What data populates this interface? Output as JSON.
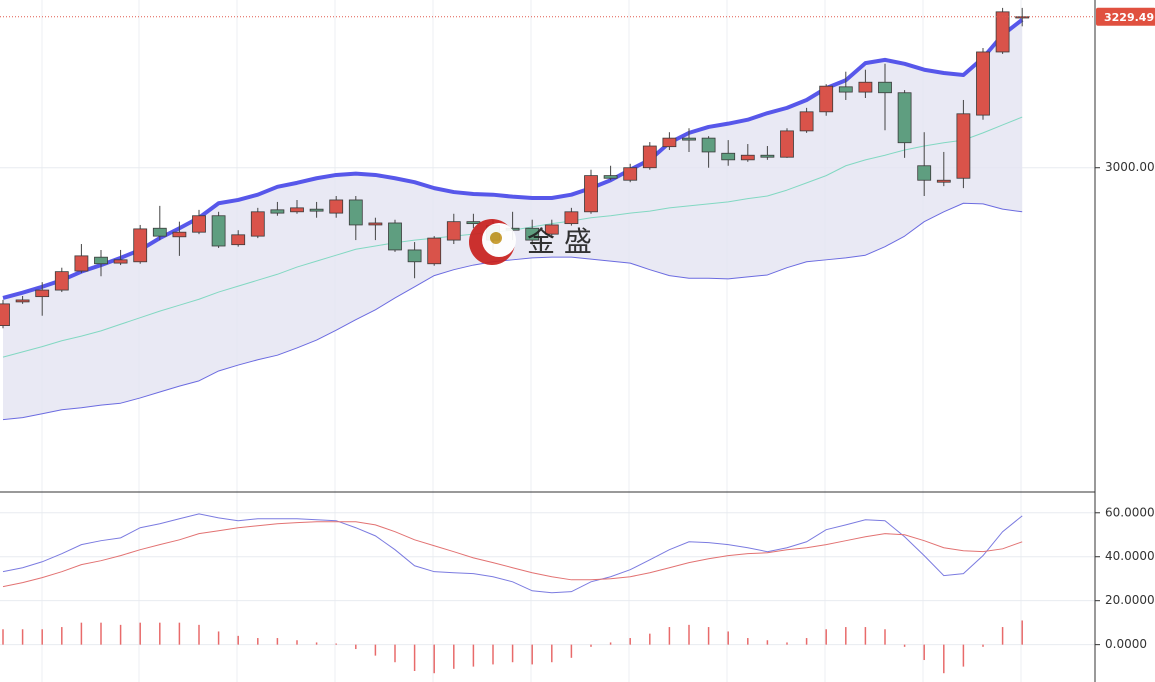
{
  "watermark": "金 盛",
  "chart_data": [
    {
      "type": "candlestick",
      "up_color": "#d9534a",
      "down_color": "#5f9e80",
      "open": [
        2760,
        2796,
        2804,
        2814,
        2843,
        2864,
        2855,
        2857,
        2908,
        2895,
        2902,
        2927,
        2883,
        2896,
        2936,
        2933,
        2937,
        2931,
        2951,
        2913,
        2916,
        2875,
        2854,
        2890,
        2918,
        2912,
        2908,
        2908,
        2899,
        2915,
        2933,
        2988,
        2981,
        3000,
        3032,
        3045,
        3045,
        3022,
        3012,
        3019,
        3016,
        3056,
        3085,
        3123,
        3115,
        3130,
        3114,
        3003,
        2978,
        2984,
        3080,
        3176,
        3228
      ],
      "high": [
        2799,
        2805,
        2826,
        2848,
        2884,
        2875,
        2875,
        2913,
        2942,
        2918,
        2936,
        2933,
        2905,
        2939,
        2948,
        2951,
        2948,
        2957,
        2957,
        2924,
        2921,
        2887,
        2896,
        2930,
        2930,
        2921,
        2933,
        2921,
        2921,
        2939,
        2997,
        3003,
        3006,
        3039,
        3054,
        3060,
        3048,
        3042,
        3036,
        3033,
        3060,
        3091,
        3127,
        3146,
        3149,
        3158,
        3118,
        3054,
        3024,
        3103,
        3182,
        3243,
        3243
      ],
      "low": [
        2756,
        2793,
        2775,
        2811,
        2840,
        2835,
        2852,
        2854,
        2890,
        2866,
        2899,
        2878,
        2880,
        2893,
        2927,
        2930,
        2924,
        2924,
        2890,
        2890,
        2872,
        2832,
        2851,
        2884,
        2908,
        2875,
        2890,
        2883,
        2893,
        2912,
        2930,
        2981,
        2978,
        2997,
        3027,
        3024,
        3000,
        3003,
        3009,
        3012,
        3015,
        3053,
        3079,
        3103,
        3106,
        3057,
        3015,
        2957,
        2972,
        2969,
        3073,
        3173,
        3215
      ],
      "close": [
        2793,
        2799,
        2814,
        2842,
        2866,
        2854,
        2860,
        2907,
        2896,
        2902,
        2927,
        2881,
        2898,
        2933,
        2931,
        2939,
        2934,
        2951,
        2913,
        2916,
        2875,
        2857,
        2893,
        2918,
        2915,
        2890,
        2905,
        2890,
        2913,
        2933,
        2988,
        2984,
        3000,
        3033,
        3045,
        3042,
        3024,
        3012,
        3019,
        3016,
        3056,
        3085,
        3124,
        3115,
        3130,
        3114,
        3038,
        2981,
        2981,
        3082,
        3176,
        3237,
        3229.49
      ],
      "bands": {
        "upper": {
          "color": "#5757ea",
          "values": [
            2802,
            2810,
            2819,
            2829,
            2842,
            2852,
            2863,
            2875,
            2893,
            2908,
            2924,
            2946,
            2951,
            2959,
            2971,
            2977,
            2984,
            2989,
            2991,
            2989,
            2984,
            2978,
            2969,
            2963,
            2960,
            2959,
            2956,
            2954,
            2954,
            2959,
            2969,
            2981,
            2997,
            3012,
            3038,
            3053,
            3062,
            3067,
            3073,
            3083,
            3091,
            3103,
            3121,
            3133,
            3159,
            3164,
            3158,
            3149,
            3144,
            3141,
            3167,
            3202,
            3225
          ]
        },
        "middle": {
          "color": "#82d8c2",
          "values": [
            2712,
            2720,
            2728,
            2737,
            2744,
            2752,
            2762,
            2772,
            2782,
            2791,
            2800,
            2811,
            2820,
            2829,
            2838,
            2849,
            2858,
            2867,
            2876,
            2881,
            2886,
            2890,
            2893,
            2896,
            2899,
            2902,
            2905,
            2910,
            2915,
            2919,
            2924,
            2927,
            2931,
            2934,
            2939,
            2942,
            2945,
            2948,
            2953,
            2957,
            2966,
            2977,
            2988,
            3003,
            3012,
            3019,
            3027,
            3033,
            3038,
            3042,
            3053,
            3065,
            3077
          ]
        },
        "lower": {
          "color": "#6b6be0",
          "values": [
            2617,
            2620,
            2626,
            2632,
            2635,
            2639,
            2642,
            2650,
            2659,
            2668,
            2676,
            2691,
            2700,
            2708,
            2715,
            2726,
            2738,
            2753,
            2769,
            2784,
            2802,
            2819,
            2836,
            2845,
            2852,
            2857,
            2860,
            2863,
            2864,
            2864,
            2861,
            2858,
            2855,
            2845,
            2836,
            2832,
            2832,
            2831,
            2834,
            2837,
            2848,
            2857,
            2860,
            2863,
            2867,
            2880,
            2896,
            2918,
            2933,
            2946,
            2945,
            2937,
            2933
          ]
        },
        "fill": "#e3e3f1"
      },
      "ylim": [
        2507,
        3255
      ],
      "yticks": [
        {
          "value": 3000,
          "label": "3000.00"
        }
      ],
      "grid": true
    },
    {
      "type": "line",
      "series": [
        {
          "color": "#7b7be0",
          "values": [
            33.2,
            35.0,
            37.7,
            41.4,
            45.5,
            47.3,
            48.6,
            53.2,
            55.0,
            57.3,
            59.5,
            57.7,
            56.4,
            57.3,
            57.3,
            57.3,
            56.8,
            56.4,
            53.2,
            49.5,
            43.2,
            35.9,
            33.2,
            32.7,
            32.3,
            30.9,
            28.6,
            24.5,
            23.6,
            24.1,
            28.6,
            30.9,
            34.1,
            38.6,
            43.2,
            46.8,
            46.4,
            45.5,
            44.1,
            42.3,
            44.1,
            46.8,
            52.3,
            54.5,
            56.8,
            56.4,
            49.1,
            40.5,
            31.4,
            32.3,
            40.5,
            51.4,
            58.6
          ]
        },
        {
          "color": "#e27272",
          "values": [
            26.4,
            28.2,
            30.5,
            33.2,
            36.4,
            38.2,
            40.5,
            43.2,
            45.5,
            47.7,
            50.5,
            51.8,
            53.2,
            54.1,
            55.0,
            55.5,
            55.9,
            55.9,
            55.9,
            54.5,
            51.4,
            47.7,
            45.0,
            42.3,
            39.5,
            37.3,
            35.0,
            32.7,
            30.9,
            29.5,
            29.5,
            30.0,
            30.9,
            32.7,
            35.0,
            37.3,
            39.1,
            40.5,
            41.4,
            41.8,
            43.2,
            44.1,
            45.5,
            47.3,
            49.1,
            50.5,
            50.0,
            47.3,
            44.1,
            42.7,
            42.3,
            43.6,
            46.8
          ]
        }
      ],
      "histogram": {
        "color": "#e86a6a",
        "values": [
          7,
          7,
          7,
          8,
          10,
          10,
          9,
          10,
          10,
          10,
          9,
          6,
          4,
          3,
          3,
          2,
          1,
          0.5,
          -2,
          -5,
          -8,
          -12,
          -13,
          -11,
          -10,
          -9,
          -8,
          -9,
          -8,
          -6,
          -1,
          1,
          3,
          5,
          8,
          9,
          8,
          6,
          3,
          2,
          1,
          3,
          7,
          8,
          8,
          7,
          -1,
          -7,
          -13,
          -10,
          -1,
          8,
          11
        ]
      },
      "ylim": [
        -17,
        69
      ],
      "yticks": [
        {
          "value": 60,
          "label": "60.0000"
        },
        {
          "value": 40,
          "label": "40.0000"
        },
        {
          "value": 20,
          "label": "20.0000"
        },
        {
          "value": 0,
          "label": "0.0000"
        }
      ],
      "grid": true
    }
  ]
}
